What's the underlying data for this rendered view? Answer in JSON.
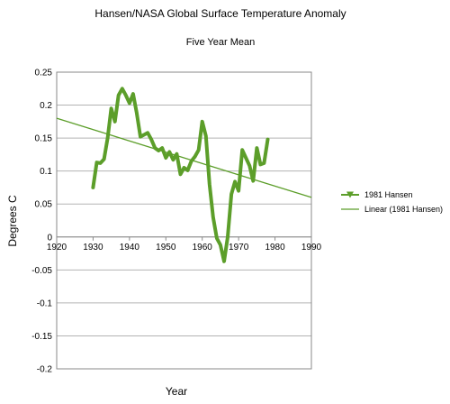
{
  "chart_data": {
    "type": "line",
    "title": "Hansen/NASA Global Surface Temperature Anomaly",
    "subtitle": "Five Year Mean",
    "xlabel": "Year",
    "ylabel": "Degrees C",
    "xlim": [
      1920,
      1990
    ],
    "ylim": [
      -0.2,
      0.25
    ],
    "x_ticks": [
      1920,
      1930,
      1940,
      1950,
      1960,
      1970,
      1980,
      1990
    ],
    "x_tick_labels": [
      "1920",
      "1930",
      "1940",
      "1950",
      "1960",
      "1970",
      "1980",
      "1990"
    ],
    "y_ticks": [
      -0.2,
      -0.15,
      -0.1,
      -0.05,
      0,
      0.05,
      0.1,
      0.15,
      0.2,
      0.25
    ],
    "y_tick_labels": [
      "-0.2",
      "-0.15",
      "-0.1",
      "-0.05",
      "0",
      "0.05",
      "0.1",
      "0.15",
      "0.2",
      "0.25"
    ],
    "grid": "horizontal",
    "legend_position": "right",
    "series": [
      {
        "name": "1981 Hansen",
        "color": "#5c9e2a",
        "x": [
          1930,
          1931,
          1932,
          1933,
          1934,
          1935,
          1936,
          1937,
          1938,
          1939,
          1940,
          1941,
          1942,
          1943,
          1944,
          1945,
          1946,
          1947,
          1948,
          1949,
          1950,
          1951,
          1952,
          1953,
          1954,
          1955,
          1956,
          1957,
          1958,
          1959,
          1960,
          1961,
          1962,
          1963,
          1964,
          1965,
          1966,
          1967,
          1968,
          1969,
          1970,
          1971,
          1972,
          1973,
          1974,
          1975,
          1976,
          1977,
          1978
        ],
        "values": [
          0.075,
          0.113,
          0.112,
          0.118,
          0.15,
          0.195,
          0.175,
          0.215,
          0.225,
          0.215,
          0.203,
          0.217,
          0.188,
          0.152,
          0.155,
          0.158,
          0.148,
          0.135,
          0.131,
          0.135,
          0.12,
          0.129,
          0.117,
          0.126,
          0.095,
          0.105,
          0.101,
          0.115,
          0.122,
          0.132,
          0.175,
          0.153,
          0.08,
          0.03,
          -0.002,
          -0.012,
          -0.037,
          0.0,
          0.065,
          0.084,
          0.07,
          0.132,
          0.12,
          0.108,
          0.085,
          0.135,
          0.11,
          0.112,
          0.148
        ]
      },
      {
        "name": "Linear (1981 Hansen)",
        "color": "#5c9e2a",
        "type": "trendline",
        "x": [
          1920,
          1990
        ],
        "values": [
          0.18,
          0.06
        ]
      }
    ]
  }
}
